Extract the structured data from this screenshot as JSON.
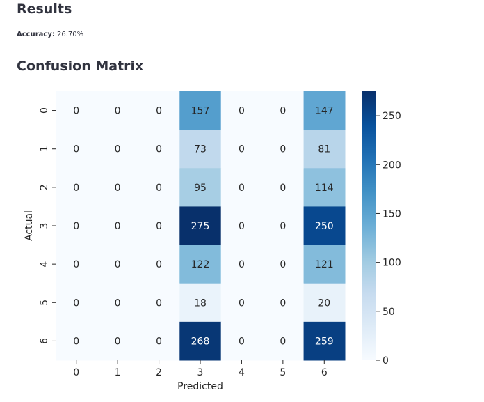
{
  "results_heading": "Results",
  "accuracy": {
    "label": "Accuracy:",
    "value": "26.70%"
  },
  "confusion_heading": "Confusion Matrix",
  "chart_data": {
    "type": "heatmap",
    "title": "",
    "xlabel": "Predicted",
    "ylabel": "Actual",
    "x_categories": [
      "0",
      "1",
      "2",
      "3",
      "4",
      "5",
      "6"
    ],
    "y_categories": [
      "0",
      "1",
      "2",
      "3",
      "4",
      "5",
      "6"
    ],
    "values": [
      [
        0,
        0,
        0,
        157,
        0,
        0,
        147
      ],
      [
        0,
        0,
        0,
        73,
        0,
        0,
        81
      ],
      [
        0,
        0,
        0,
        95,
        0,
        0,
        114
      ],
      [
        0,
        0,
        0,
        275,
        0,
        0,
        250
      ],
      [
        0,
        0,
        0,
        122,
        0,
        0,
        121
      ],
      [
        0,
        0,
        0,
        18,
        0,
        0,
        20
      ],
      [
        0,
        0,
        0,
        268,
        0,
        0,
        259
      ]
    ],
    "colormap": "Blues",
    "vmin": 0,
    "vmax": 275,
    "colorbar_ticks": [
      0,
      50,
      100,
      150,
      200,
      250
    ],
    "annotations": true,
    "grid": false
  }
}
